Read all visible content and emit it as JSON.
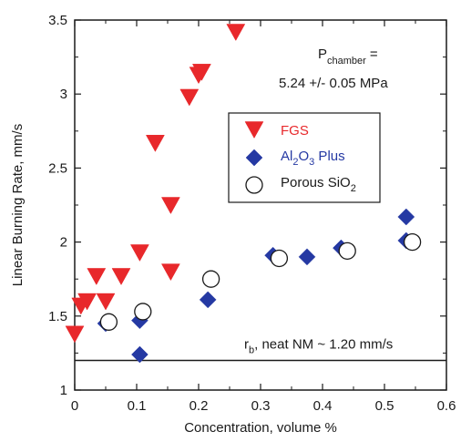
{
  "chart_data": {
    "type": "scatter",
    "xlabel": "Concentration, volume %",
    "ylabel": "Linear Burning Rate, mm/s",
    "xlim": [
      0,
      0.6
    ],
    "ylim": [
      1,
      3.5
    ],
    "x_ticks": [
      0,
      0.1,
      0.2,
      0.3,
      0.4,
      0.5,
      0.6
    ],
    "y_ticks": [
      1,
      1.5,
      2,
      2.5,
      3,
      3.5
    ],
    "x_tick_labels": [
      "0",
      "0.1",
      "0.2",
      "0.3",
      "0.4",
      "0.5",
      "0.6"
    ],
    "y_tick_labels": [
      "1",
      "1.5",
      "2",
      "2.5",
      "3",
      "3.5"
    ],
    "grid": false,
    "legend_position": "center-right",
    "series": [
      {
        "name": "FGS",
        "marker": "triangle-down",
        "color": "#e8282b",
        "points": [
          [
            0.0,
            1.38
          ],
          [
            0.01,
            1.57
          ],
          [
            0.02,
            1.6
          ],
          [
            0.035,
            1.77
          ],
          [
            0.05,
            1.6
          ],
          [
            0.075,
            1.77
          ],
          [
            0.105,
            1.93
          ],
          [
            0.13,
            2.67
          ],
          [
            0.155,
            2.25
          ],
          [
            0.155,
            1.8
          ],
          [
            0.185,
            2.98
          ],
          [
            0.2,
            3.13
          ],
          [
            0.205,
            3.15
          ],
          [
            0.26,
            3.42
          ]
        ]
      },
      {
        "name": "Al2O3 Plus",
        "marker": "diamond",
        "color": "#2539a3",
        "points": [
          [
            0.05,
            1.45
          ],
          [
            0.105,
            1.47
          ],
          [
            0.105,
            1.24
          ],
          [
            0.215,
            1.61
          ],
          [
            0.32,
            1.91
          ],
          [
            0.375,
            1.9
          ],
          [
            0.43,
            1.96
          ],
          [
            0.535,
            2.17
          ],
          [
            0.535,
            2.01
          ]
        ]
      },
      {
        "name": "Porous SiO2",
        "marker": "circle-open",
        "color": "#1a1a1a",
        "points": [
          [
            0.055,
            1.46
          ],
          [
            0.11,
            1.53
          ],
          [
            0.22,
            1.75
          ],
          [
            0.33,
            1.89
          ],
          [
            0.44,
            1.94
          ],
          [
            0.545,
            2.0
          ]
        ]
      }
    ],
    "reference_line": {
      "y": 1.2
    },
    "annotations": {
      "pressure_p": "P",
      "pressure_sub": "chamber",
      "pressure_eq": "=",
      "pressure_value": "5.24 +/- 0.05 MPa",
      "ref_main": "r",
      "ref_sub": "b",
      "ref_rest": ", neat NM ~ 1.20 mm/s"
    },
    "legend": {
      "fgs": "FGS",
      "al_a": "Al",
      "al_s1": "2",
      "al_b": "O",
      "al_s2": "3",
      "al_c": " Plus",
      "si_a": "Porous SiO",
      "si_s": "2"
    },
    "colors": {
      "fgs": "#e8282b",
      "alumina": "#2539a3",
      "silica": "#1a1a1a",
      "axis": "#1a1a1a"
    }
  }
}
